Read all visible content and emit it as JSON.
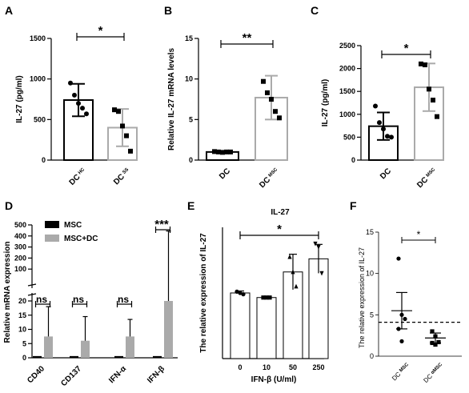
{
  "chart_data": [
    {
      "panel": "A",
      "type": "bar",
      "ylabel": "IL-27 (pg/ml)",
      "ylim": [
        0,
        1500
      ],
      "yticks": [
        "0",
        "500",
        "1000",
        "1500"
      ],
      "categories": [
        {
          "main": "DC",
          "sub": "HC"
        },
        {
          "main": "DC",
          "sub": "SS"
        }
      ],
      "values": [
        740,
        400
      ],
      "sd": [
        200,
        230
      ],
      "points": [
        [
          950,
          800,
          700,
          640,
          570
        ],
        [
          620,
          600,
          420,
          300,
          110
        ]
      ],
      "bar_colors": [
        "#000000",
        "#aaaaaa"
      ],
      "significance": "*"
    },
    {
      "panel": "B",
      "type": "bar",
      "ylabel": "Relative IL-27 mRNA levels",
      "ylim": [
        0,
        15
      ],
      "yticks": [
        "0",
        "5",
        "10",
        "15"
      ],
      "categories": [
        {
          "main": "DC",
          "sub": ""
        },
        {
          "main": "DC",
          "sub": "MSC"
        }
      ],
      "values": [
        1.0,
        7.7
      ],
      "sd": [
        0.1,
        2.7
      ],
      "points": [
        [
          1.05,
          1.0,
          0.95,
          1.0,
          1.0
        ],
        [
          9.7,
          8.3,
          7.5,
          6.0,
          5.2
        ]
      ],
      "bar_colors": [
        "#000000",
        "#aaaaaa"
      ],
      "significance": "**"
    },
    {
      "panel": "C",
      "type": "bar",
      "ylabel": "IL-27 (pg/ml)",
      "ylim": [
        0,
        2500
      ],
      "yticks": [
        "0",
        "500",
        "1000",
        "1500",
        "2000",
        "2500"
      ],
      "categories": [
        {
          "main": "DC",
          "sub": ""
        },
        {
          "main": "DC",
          "sub": "MSC"
        }
      ],
      "values": [
        740,
        1590
      ],
      "sd": [
        300,
        520
      ],
      "points": [
        [
          1180,
          820,
          680,
          520,
          500
        ],
        [
          2100,
          2080,
          1550,
          1310,
          950
        ]
      ],
      "bar_colors": [
        "#000000",
        "#aaaaaa"
      ],
      "significance": "*"
    },
    {
      "panel": "D",
      "type": "bar",
      "ylabel": "Relative mRNA expression",
      "yticks_lower": [
        "0",
        "5",
        "10",
        "15",
        "20"
      ],
      "yticks_upper": [
        "100",
        "200",
        "300",
        "400",
        "500"
      ],
      "categories": [
        "CD40",
        "CD137",
        "IFN-α",
        "IFN-β"
      ],
      "series": [
        {
          "name": "MSC",
          "color": "#000000",
          "values": [
            0.6,
            0.6,
            0.6,
            0.6
          ]
        },
        {
          "name": "MSC+DC",
          "color": "#aaaaaa",
          "values": [
            7.5,
            6.0,
            7.5,
            20
          ],
          "err_high": [
            18,
            14.5,
            13.5,
            445
          ]
        }
      ],
      "significance": [
        "ns",
        "ns",
        "ns",
        "***"
      ]
    },
    {
      "panel": "E",
      "type": "bar",
      "title": "IL-27",
      "ylabel": "The relative expression of IL-27",
      "xlabel": "IFN-β (U/ml)",
      "ylim": [
        0,
        2.0
      ],
      "categories": [
        "0",
        "10",
        "50",
        "250"
      ],
      "values": [
        1.0,
        0.93,
        1.32,
        1.52
      ],
      "sd": [
        0.03,
        0.02,
        0.27,
        0.22
      ],
      "points": [
        [
          1.02,
          1.0,
          0.98
        ],
        [
          0.93,
          0.93,
          0.93
        ],
        [
          1.55,
          1.32,
          1.1
        ],
        [
          1.75,
          1.7,
          1.3
        ]
      ],
      "significance": "*"
    },
    {
      "panel": "F",
      "type": "scatter",
      "ylabel": "The relative expression of IL-27",
      "ylim": [
        0,
        15
      ],
      "yticks": [
        "0",
        "5",
        "10",
        "15"
      ],
      "categories": [
        {
          "main": "DC",
          "sub": "MSC"
        },
        {
          "main": "DC",
          "sub": "αMSC"
        }
      ],
      "means": [
        5.5,
        2.2
      ],
      "sd": [
        2.2,
        0.6
      ],
      "points": [
        [
          11.8,
          5.0,
          4.5,
          3.3,
          1.8
        ],
        [
          3.0,
          2.4,
          1.7,
          1.6,
          1.4
        ]
      ],
      "reference_line": 4.1,
      "significance": "*"
    }
  ],
  "labels": {
    "panels": [
      "A",
      "B",
      "C",
      "D",
      "E",
      "F"
    ]
  }
}
